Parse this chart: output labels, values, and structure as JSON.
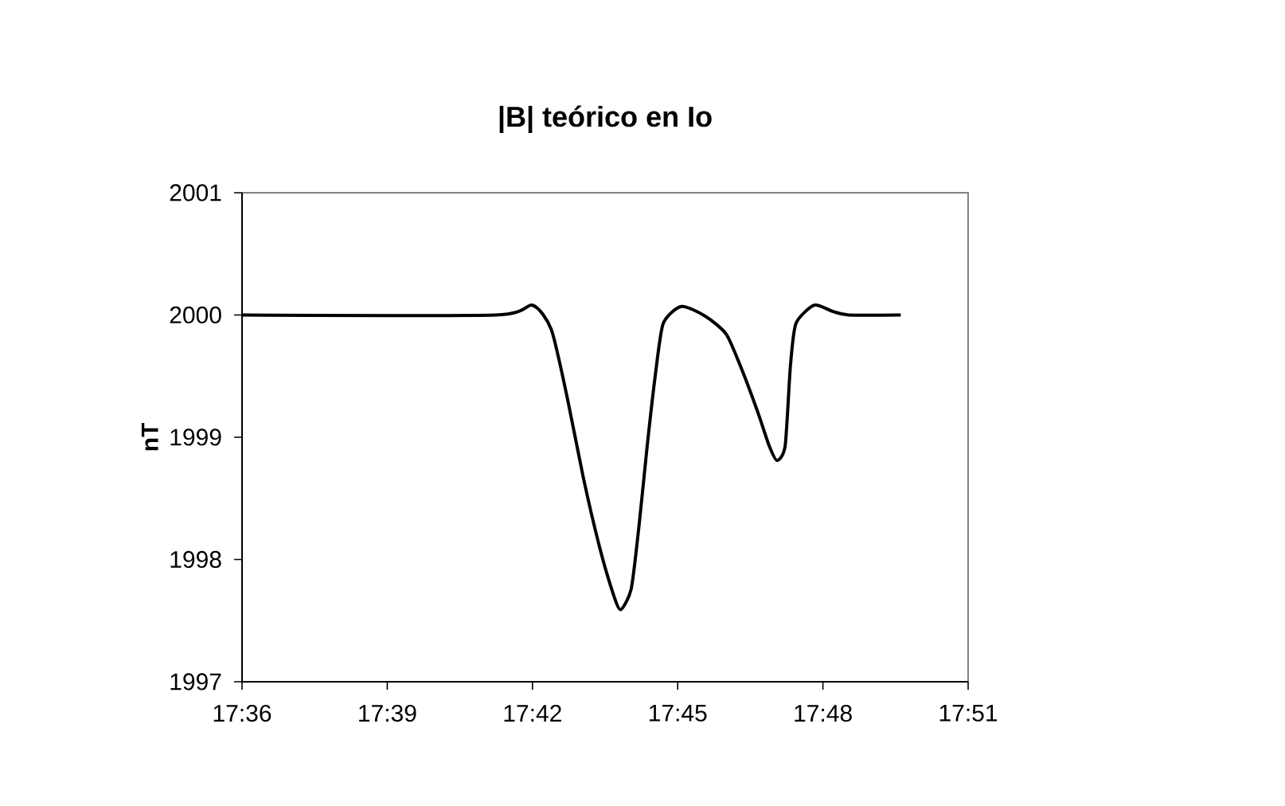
{
  "chart_data": {
    "type": "line",
    "title": "|B| teórico en Io",
    "ylabel": "nT",
    "x": [
      17.6,
      17.6873,
      17.7,
      17.7065,
      17.712,
      17.7175,
      17.723,
      17.7275,
      17.7303,
      17.734,
      17.7367,
      17.7395,
      17.7422,
      17.745,
      17.7513,
      17.7595,
      17.7668,
      17.7723,
      17.7778,
      17.7815,
      17.7842,
      17.787,
      17.7888,
      17.7907,
      17.797,
      17.8033,
      17.8088,
      17.8268
    ],
    "series": [
      {
        "color": "#000000",
        "values": [
          2000,
          2000,
          2000.08,
          1999.88,
          1999.32,
          1998.67,
          1998.11,
          1997.74,
          1997.59,
          1997.76,
          1998.28,
          1998.93,
          1999.49,
          1999.93,
          2000.07,
          1999.99,
          1999.84,
          1999.54,
          1999.19,
          1998.93,
          1998.81,
          1998.93,
          1999.58,
          1999.93,
          2000.08,
          2000.03,
          2000,
          2000
        ]
      }
    ],
    "xlim": [
      17.6,
      17.85
    ],
    "xticks": [
      {
        "value": 17.6,
        "label": "17:36"
      },
      {
        "value": 17.65,
        "label": "17:39"
      },
      {
        "value": 17.7,
        "label": "17:42"
      },
      {
        "value": 17.75,
        "label": "17:45"
      },
      {
        "value": 17.8,
        "label": "17:48"
      },
      {
        "value": 17.85,
        "label": "17:51"
      }
    ],
    "ylim": [
      1997,
      2001
    ],
    "yticks": [
      1997,
      1998,
      1999,
      2000,
      2001
    ],
    "marker": "none",
    "line_style": "solid"
  }
}
